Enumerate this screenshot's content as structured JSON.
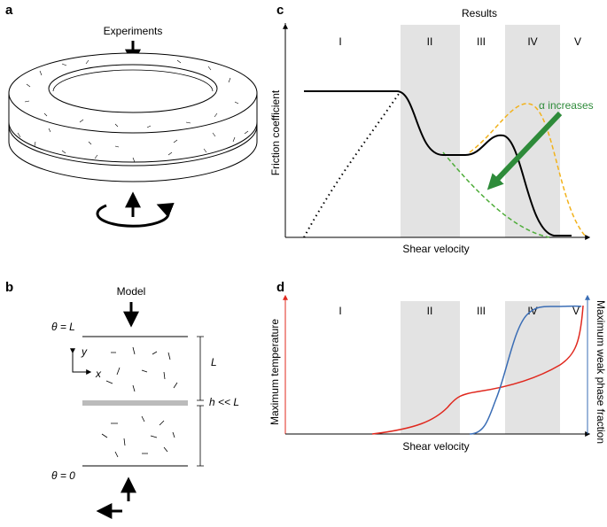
{
  "panel_a": {
    "letter": "a",
    "label": "Experiments"
  },
  "panel_b": {
    "letter": "b",
    "label": "Model",
    "top_boundary": "θ = L",
    "bottom_boundary": "θ = 0",
    "y_axis": "y",
    "x_axis": "x",
    "height": "L",
    "gap": "h << L"
  },
  "panel_c": {
    "letter": "c",
    "title": "Results",
    "regions": [
      "I",
      "II",
      "III",
      "IV",
      "V"
    ],
    "y_label": "Friction coefficient",
    "x_label": "Shear velocity",
    "annotation": "α increases"
  },
  "panel_d": {
    "letter": "d",
    "regions": [
      "I",
      "II",
      "III",
      "IV",
      "V"
    ],
    "y_label": "Maximum temperature",
    "y2_label": "Maximum weak phase fraction",
    "x_label": "Shear velocity"
  }
}
